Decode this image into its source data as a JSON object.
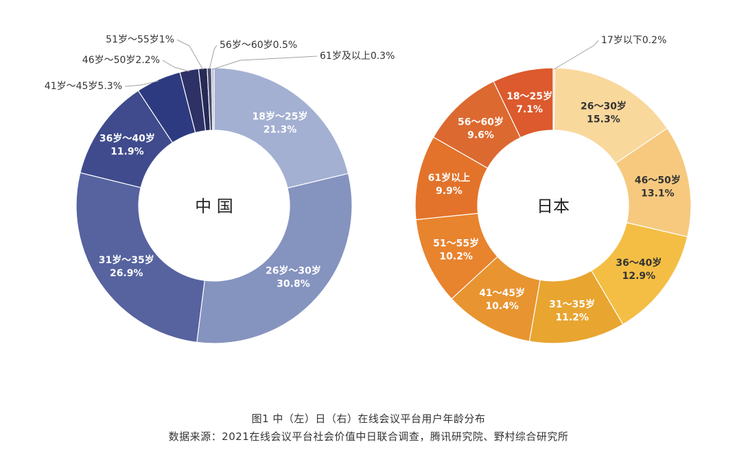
{
  "caption": {
    "figure": "图1 中（左）日（右）在线会议平台用户年龄分布",
    "source": "数据来源：2021在线会议平台社会价值中日联合调查，腾讯研究院、野村综合研究所"
  },
  "chart_data": [
    {
      "type": "pie",
      "variant": "donut",
      "center_label": "中 国",
      "series": [
        {
          "labels": [
            "18岁～25岁",
            "26岁～30岁",
            "31岁～35岁",
            "36岁～40岁",
            "41岁～45岁",
            "46岁～50岁",
            "51岁～55岁",
            "56岁～60岁",
            "61岁及以上"
          ],
          "values": [
            21.3,
            30.8,
            26.9,
            11.9,
            5.3,
            2.2,
            1.0,
            0.5,
            0.3
          ],
          "value_labels": [
            "21.3%",
            "30.8%",
            "26.9%",
            "11.9%",
            "5.3%",
            "2.2%",
            "1%",
            "0.5%",
            "0.3%"
          ],
          "colors": [
            "#a3b0d2",
            "#8593bf",
            "#56639f",
            "#3f4b8c",
            "#2e3a80",
            "#2d3165",
            "#262a55",
            "#4a4d6d",
            "#b9bdd2"
          ]
        }
      ]
    },
    {
      "type": "pie",
      "variant": "donut",
      "center_label": "日本",
      "series": [
        {
          "labels": [
            "17岁以下",
            "26～30岁",
            "46～50岁",
            "36～40岁",
            "31～35岁",
            "41～45岁",
            "51～55岁",
            "61岁以上",
            "56～60岁",
            "18～25岁"
          ],
          "values": [
            0.2,
            15.3,
            13.1,
            12.9,
            11.2,
            10.4,
            10.2,
            9.9,
            9.6,
            7.1
          ],
          "value_labels": [
            "0.2%",
            "15.3%",
            "13.1%",
            "12.9%",
            "11.2%",
            "10.4%",
            "10.2%",
            "9.9%",
            "9.6%",
            "7.1%"
          ],
          "colors": [
            "#f2d29a",
            "#f9d89c",
            "#f6c97f",
            "#f4be44",
            "#e8a530",
            "#e89430",
            "#e8832e",
            "#e3732a",
            "#dc6930",
            "#dc5a2d"
          ]
        }
      ]
    }
  ]
}
